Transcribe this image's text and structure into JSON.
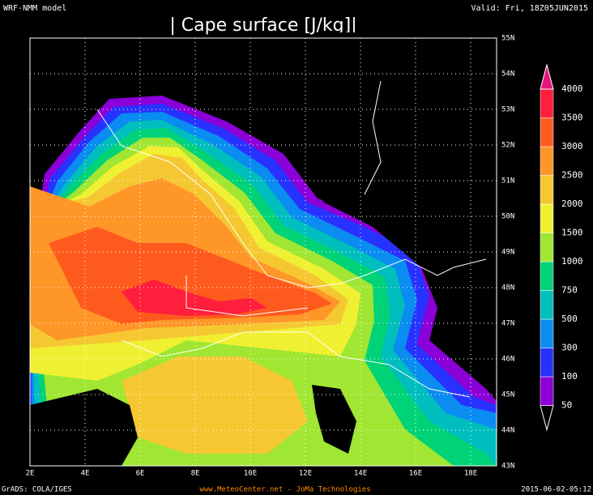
{
  "header": {
    "model": "WRF-NMM model",
    "valid": "Valid: Fri, 18Z05JUN2015",
    "title": "| Cape surface [J/kg]|"
  },
  "map": {
    "lon_labels": [
      "2E",
      "4E",
      "6E",
      "8E",
      "10E",
      "12E",
      "14E",
      "16E",
      "18E"
    ],
    "lat_labels": [
      "43N",
      "44N",
      "45N",
      "46N",
      "47N",
      "48N",
      "49N",
      "50N",
      "51N",
      "52N",
      "53N",
      "54N",
      "55N"
    ]
  },
  "colorbar": {
    "levels": [
      50,
      100,
      300,
      500,
      750,
      1000,
      1500,
      2000,
      2500,
      3000,
      3500,
      4000
    ],
    "colors": [
      "#ffffff",
      "#8c00d8",
      "#2832ff",
      "#0a8cf0",
      "#00bebe",
      "#00d278",
      "#a0e632",
      "#f0f032",
      "#f5c832",
      "#ff9628",
      "#ff5a1e",
      "#ff1e3c",
      "#e6147d"
    ]
  },
  "footer": {
    "left": "GrADS: COLA/IGES",
    "center": "www.MeteoCenter.net  -  JoMa Technologies",
    "right": "2015-06-02-05:12"
  }
}
